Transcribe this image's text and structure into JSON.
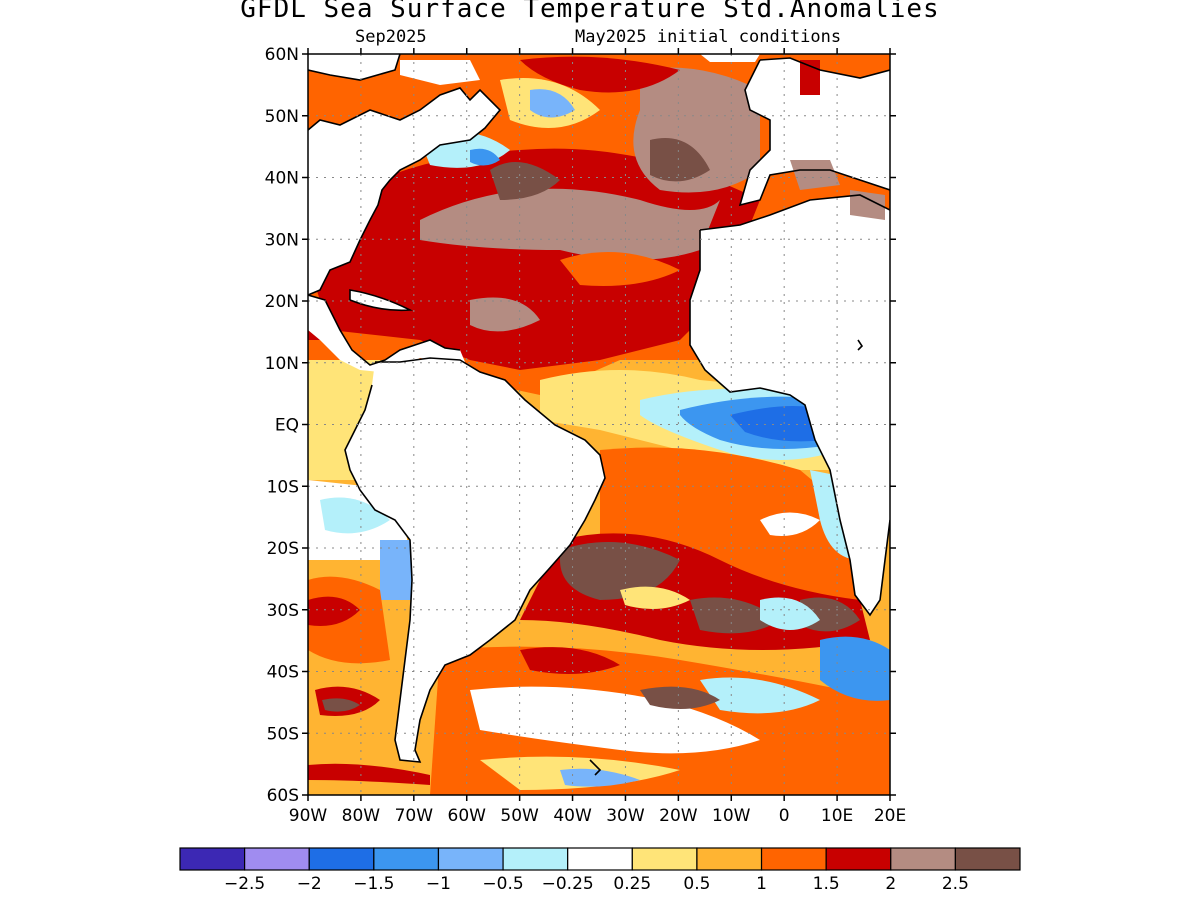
{
  "title": "GFDL Sea Surface Temperature Std.Anomalies",
  "valid_month": "Sep2025",
  "initial_conditions": "May2025 initial conditions",
  "map": {
    "lon_range": [
      -90,
      20
    ],
    "lat_range": [
      -60,
      60
    ],
    "lat_ticks": [
      "60N",
      "50N",
      "40N",
      "30N",
      "20N",
      "10N",
      "EQ",
      "10S",
      "20S",
      "30S",
      "40S",
      "50S",
      "60S"
    ],
    "lon_ticks": [
      "90W",
      "80W",
      "70W",
      "60W",
      "50W",
      "40W",
      "30W",
      "20W",
      "10W",
      "0",
      "10E",
      "20E"
    ],
    "gridlines": "dotted"
  },
  "colorbar": {
    "colors": [
      "#3c28b4",
      "#a08cf0",
      "#1e6ee6",
      "#3c96f0",
      "#78b4fa",
      "#b4f0fa",
      "#ffffff",
      "#ffe478",
      "#ffb432",
      "#ff6400",
      "#c80000",
      "#b48c82",
      "#785046"
    ],
    "labels": [
      "−2.5",
      "−2",
      "−1.5",
      "−1",
      "−0.5",
      "−0.25",
      "0.25",
      "0.5",
      "1",
      "1.5",
      "2",
      "2.5"
    ]
  }
}
